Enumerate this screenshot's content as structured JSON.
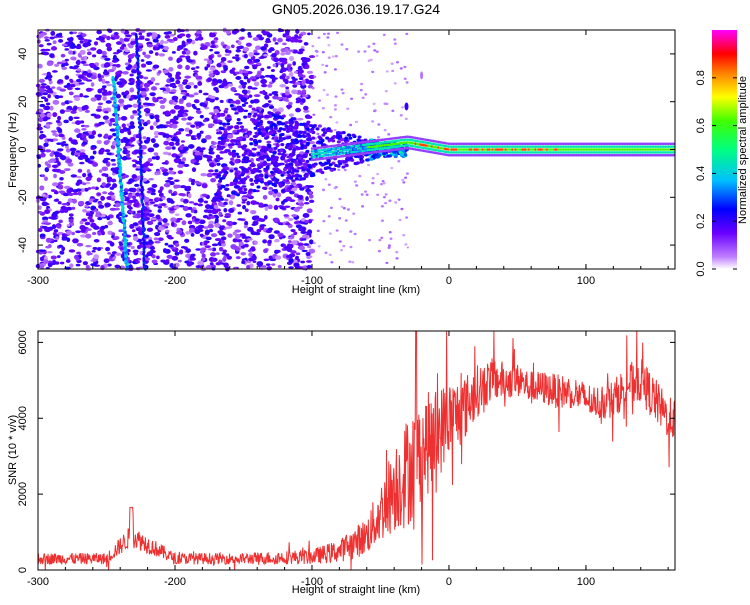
{
  "title": "GN05.2026.036.19.17.G24",
  "chart_data": [
    {
      "type": "heatmap",
      "xlabel": "Height of straight line (km)",
      "ylabel": "Frequency (Hz)",
      "xlim": [
        -300,
        165
      ],
      "ylim": [
        -50,
        50
      ],
      "xticks": [
        -300,
        -200,
        -100,
        0,
        100
      ],
      "yticks": [
        -40,
        -20,
        0,
        20,
        40
      ],
      "colorbar": {
        "label": "Normalized spectral amplitude",
        "range": [
          0,
          1
        ],
        "ticks": [
          "0.0",
          "0.2",
          "0.4",
          "0.6",
          "0.8"
        ],
        "tick_values": [
          0.0,
          0.2,
          0.4,
          0.6,
          0.8
        ]
      },
      "features": {
        "carrier_line_frequency_hz": 0,
        "carrier_line_start_km": -100,
        "noise_region_end_km": -100,
        "meteor_trail_streak_1_km": [
          -245,
          -235
        ],
        "meteor_trail_streak_2_km": [
          -228,
          -222
        ]
      }
    },
    {
      "type": "line",
      "xlabel": "Height of straight line (km)",
      "ylabel": "SNR (10 * v/v)",
      "xlim": [
        -300,
        165
      ],
      "ylim": [
        0,
        6300
      ],
      "xticks": [
        -300,
        -200,
        -100,
        0,
        100
      ],
      "yticks": [
        0,
        2000,
        4000,
        6000
      ],
      "series": [
        {
          "name": "SNR",
          "color": "#ee3030",
          "x": [
            -300,
            -250,
            -232,
            -200,
            -150,
            -100,
            -80,
            -60,
            -50,
            -40,
            -30,
            -20,
            -10,
            0,
            10,
            20,
            30,
            40,
            50,
            60,
            70,
            80,
            90,
            100,
            110,
            120,
            130,
            140,
            150,
            160,
            165
          ],
          "y": [
            300,
            300,
            900,
            300,
            300,
            350,
            500,
            900,
            1500,
            2200,
            2600,
            3200,
            3500,
            4000,
            4200,
            4700,
            5000,
            5000,
            5000,
            4800,
            4800,
            4700,
            4700,
            4500,
            4400,
            4500,
            4900,
            5000,
            4500,
            4000,
            4000
          ],
          "noise_amplitude": [
            150,
            150,
            300,
            150,
            150,
            200,
            300,
            500,
            800,
            1200,
            1500,
            1400,
            1300,
            1000,
            900,
            700,
            600,
            500,
            450,
            450,
            450,
            450,
            450,
            450,
            450,
            500,
            550,
            600,
            600,
            550,
            550
          ]
        }
      ]
    }
  ]
}
